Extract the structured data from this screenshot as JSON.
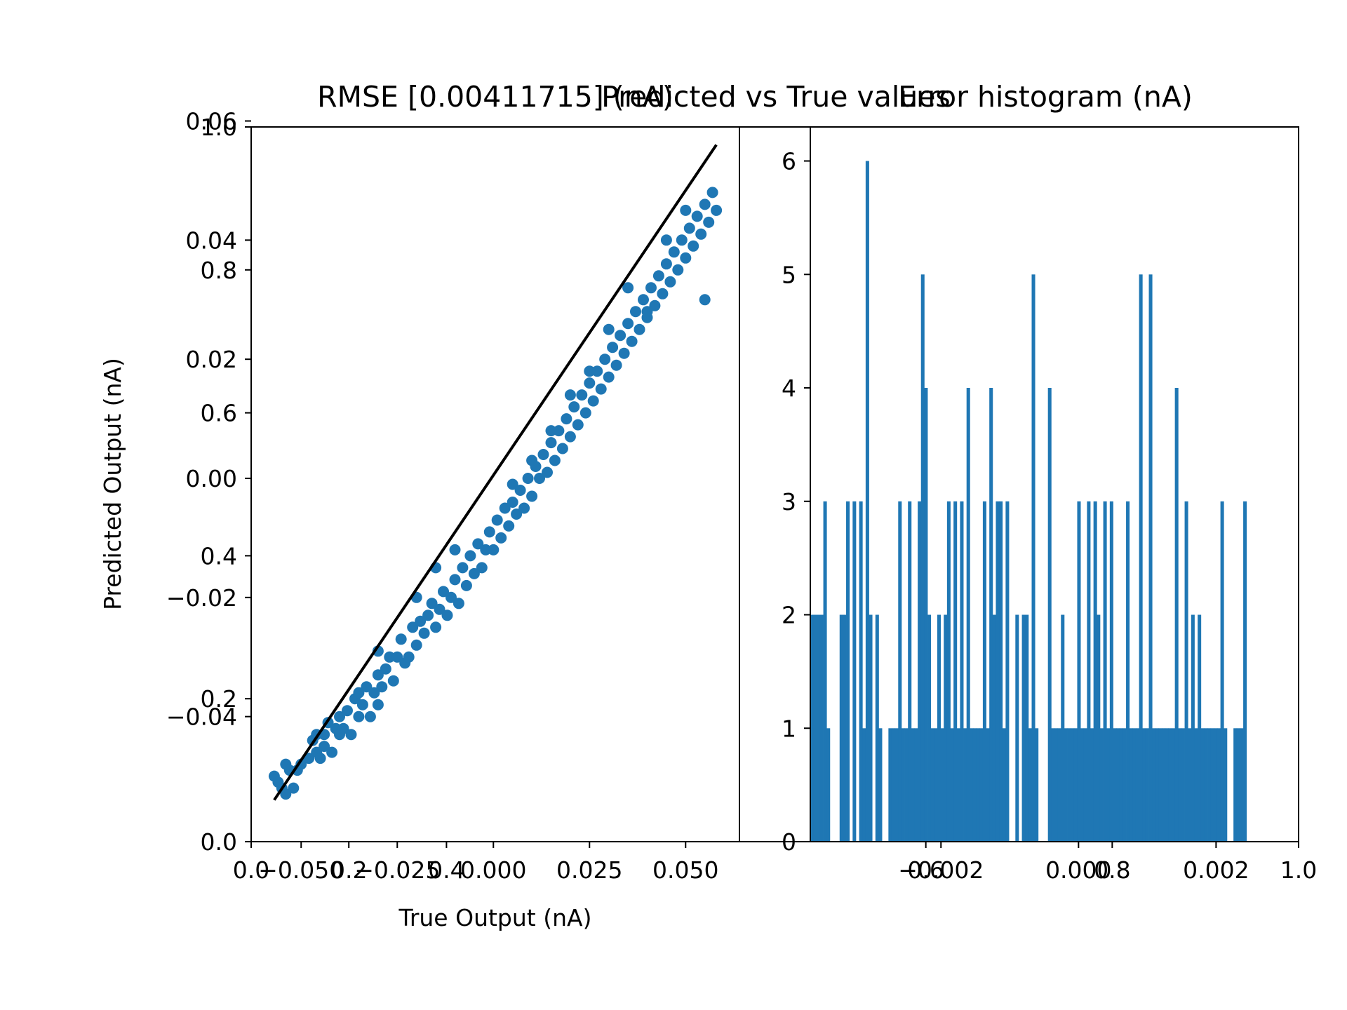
{
  "chart_data": [
    {
      "panel": "left",
      "type": "scatter",
      "titles": [
        "RMSE [0.00411715] (nA)",
        "Predicted vs True values"
      ],
      "xlabel": "True Output (nA)",
      "ylabel": "Predicted Output (nA)",
      "outer_axis": {
        "xlim": [
          0.0,
          1.0
        ],
        "ylim": [
          0.0,
          1.0
        ],
        "xticks": [
          "0.0",
          "0.2",
          "0.4"
        ],
        "yticks": [
          "0.0",
          "0.2",
          "0.4",
          "0.6",
          "0.8",
          "1.0"
        ]
      },
      "inner_axis": {
        "xlim": [
          -0.063,
          0.064
        ],
        "ylim": [
          -0.061,
          0.059
        ],
        "xticks": [
          "−0.050",
          "−0.025",
          "0.000",
          "0.025",
          "0.050"
        ],
        "yticks": [
          "−0.04",
          "−0.02",
          "0.00",
          "0.02",
          "0.04",
          "0.06"
        ]
      },
      "fit_line": {
        "x": [
          -0.057,
          0.058
        ],
        "y": [
          -0.054,
          0.056
        ],
        "color": "#000000"
      },
      "series": [
        {
          "color": "#1f77b4",
          "points": [
            [
              -0.057,
              -0.05
            ],
            [
              -0.056,
              -0.051
            ],
            [
              -0.055,
              -0.052
            ],
            [
              -0.054,
              -0.053
            ],
            [
              -0.054,
              -0.048
            ],
            [
              -0.053,
              -0.049
            ],
            [
              -0.052,
              -0.052
            ],
            [
              -0.051,
              -0.049
            ],
            [
              -0.05,
              -0.048
            ],
            [
              -0.048,
              -0.047
            ],
            [
              -0.047,
              -0.044
            ],
            [
              -0.046,
              -0.046
            ],
            [
              -0.045,
              -0.047
            ],
            [
              -0.044,
              -0.043
            ],
            [
              -0.044,
              -0.045
            ],
            [
              -0.043,
              -0.041
            ],
            [
              -0.042,
              -0.046
            ],
            [
              -0.041,
              -0.042
            ],
            [
              -0.04,
              -0.043
            ],
            [
              -0.039,
              -0.042
            ],
            [
              -0.038,
              -0.039
            ],
            [
              -0.037,
              -0.043
            ],
            [
              -0.036,
              -0.037
            ],
            [
              -0.035,
              -0.04
            ],
            [
              -0.035,
              -0.036
            ],
            [
              -0.034,
              -0.038
            ],
            [
              -0.033,
              -0.035
            ],
            [
              -0.032,
              -0.04
            ],
            [
              -0.031,
              -0.036
            ],
            [
              -0.03,
              -0.038
            ],
            [
              -0.03,
              -0.033
            ],
            [
              -0.029,
              -0.035
            ],
            [
              -0.028,
              -0.032
            ],
            [
              -0.027,
              -0.03
            ],
            [
              -0.026,
              -0.034
            ],
            [
              -0.025,
              -0.03
            ],
            [
              -0.024,
              -0.027
            ],
            [
              -0.023,
              -0.031
            ],
            [
              -0.022,
              -0.03
            ],
            [
              -0.021,
              -0.025
            ],
            [
              -0.02,
              -0.028
            ],
            [
              -0.019,
              -0.024
            ],
            [
              -0.018,
              -0.026
            ],
            [
              -0.017,
              -0.023
            ],
            [
              -0.016,
              -0.021
            ],
            [
              -0.015,
              -0.025
            ],
            [
              -0.014,
              -0.022
            ],
            [
              -0.013,
              -0.019
            ],
            [
              -0.012,
              -0.023
            ],
            [
              -0.011,
              -0.02
            ],
            [
              -0.01,
              -0.017
            ],
            [
              -0.009,
              -0.021
            ],
            [
              -0.008,
              -0.015
            ],
            [
              -0.007,
              -0.018
            ],
            [
              -0.006,
              -0.013
            ],
            [
              -0.005,
              -0.016
            ],
            [
              -0.004,
              -0.011
            ],
            [
              -0.003,
              -0.015
            ],
            [
              -0.002,
              -0.012
            ],
            [
              -0.001,
              -0.009
            ],
            [
              0.0,
              -0.012
            ],
            [
              0.001,
              -0.007
            ],
            [
              0.002,
              -0.01
            ],
            [
              0.003,
              -0.005
            ],
            [
              0.004,
              -0.008
            ],
            [
              0.005,
              -0.004
            ],
            [
              0.006,
              -0.006
            ],
            [
              0.007,
              -0.002
            ],
            [
              0.008,
              -0.005
            ],
            [
              0.009,
              0.0
            ],
            [
              0.01,
              -0.003
            ],
            [
              0.011,
              0.002
            ],
            [
              0.012,
              0.0
            ],
            [
              0.013,
              0.004
            ],
            [
              0.014,
              0.001
            ],
            [
              0.015,
              0.006
            ],
            [
              0.016,
              0.003
            ],
            [
              0.017,
              0.008
            ],
            [
              0.018,
              0.005
            ],
            [
              0.019,
              0.01
            ],
            [
              0.02,
              0.007
            ],
            [
              0.021,
              0.012
            ],
            [
              0.022,
              0.009
            ],
            [
              0.023,
              0.014
            ],
            [
              0.024,
              0.011
            ],
            [
              0.025,
              0.016
            ],
            [
              0.026,
              0.013
            ],
            [
              0.027,
              0.018
            ],
            [
              0.028,
              0.015
            ],
            [
              0.029,
              0.02
            ],
            [
              0.03,
              0.017
            ],
            [
              0.031,
              0.022
            ],
            [
              0.032,
              0.019
            ],
            [
              0.033,
              0.024
            ],
            [
              0.034,
              0.021
            ],
            [
              0.035,
              0.026
            ],
            [
              0.036,
              0.023
            ],
            [
              0.037,
              0.028
            ],
            [
              0.038,
              0.025
            ],
            [
              0.039,
              0.03
            ],
            [
              0.04,
              0.027
            ],
            [
              0.041,
              0.032
            ],
            [
              0.042,
              0.029
            ],
            [
              0.043,
              0.034
            ],
            [
              0.044,
              0.031
            ],
            [
              0.045,
              0.036
            ],
            [
              0.046,
              0.033
            ],
            [
              0.047,
              0.038
            ],
            [
              0.048,
              0.035
            ],
            [
              0.049,
              0.04
            ],
            [
              0.05,
              0.037
            ],
            [
              0.051,
              0.042
            ],
            [
              0.052,
              0.039
            ],
            [
              0.053,
              0.044
            ],
            [
              0.054,
              0.041
            ],
            [
              0.055,
              0.046
            ],
            [
              0.056,
              0.043
            ],
            [
              0.057,
              0.048
            ],
            [
              0.058,
              0.045
            ],
            [
              0.055,
              0.03
            ],
            [
              0.01,
              0.003
            ],
            [
              0.025,
              0.018
            ],
            [
              -0.03,
              -0.029
            ],
            [
              -0.01,
              -0.012
            ],
            [
              0.04,
              0.028
            ],
            [
              0.035,
              0.032
            ],
            [
              -0.046,
              -0.043
            ],
            [
              -0.02,
              -0.02
            ],
            [
              0.005,
              -0.001
            ],
            [
              0.02,
              0.014
            ],
            [
              0.045,
              0.04
            ],
            [
              0.05,
              0.045
            ],
            [
              -0.04,
              -0.04
            ],
            [
              -0.015,
              -0.015
            ],
            [
              0.015,
              0.008
            ],
            [
              0.03,
              0.025
            ]
          ]
        }
      ]
    },
    {
      "panel": "right",
      "type": "bar",
      "title": "Error histogram (nA)",
      "outer_axis": {
        "xlim": [
          0.0,
          1.0
        ],
        "xticks": [
          "0.6",
          "0.8",
          "1.0"
        ]
      },
      "inner_axis": {
        "xlim": [
          -0.0039,
          0.0032
        ],
        "ylim": [
          0,
          6.3
        ],
        "xticks": [
          "−0.002",
          "0.000",
          "0.002"
        ],
        "yticks": [
          "0",
          "1",
          "2",
          "3",
          "4",
          "5",
          "6"
        ]
      },
      "bins": {
        "start": -0.0039,
        "width": 4.733e-05
      },
      "series": [
        {
          "color": "#1f77b4",
          "counts": [
            2,
            2,
            2,
            2,
            3,
            1,
            0,
            0,
            0,
            2,
            2,
            3,
            0,
            3,
            0,
            3,
            1,
            6,
            2,
            0,
            2,
            1,
            0,
            0,
            1,
            1,
            1,
            3,
            1,
            1,
            3,
            1,
            1,
            3,
            5,
            4,
            2,
            1,
            1,
            2,
            1,
            2,
            3,
            1,
            3,
            1,
            3,
            1,
            4,
            1,
            1,
            1,
            1,
            3,
            1,
            4,
            2,
            3,
            3,
            1,
            3,
            0,
            0,
            2,
            0,
            2,
            2,
            1,
            5,
            1,
            0,
            0,
            0,
            4,
            1,
            1,
            1,
            2,
            1,
            1,
            1,
            1,
            3,
            1,
            1,
            3,
            1,
            3,
            2,
            1,
            3,
            1,
            3,
            1,
            1,
            1,
            1,
            3,
            1,
            1,
            1,
            5,
            1,
            1,
            5,
            1,
            1,
            1,
            1,
            1,
            1,
            1,
            4,
            1,
            1,
            3,
            1,
            2,
            1,
            2,
            1,
            1,
            1,
            1,
            1,
            1,
            3,
            1,
            0,
            0,
            1,
            1,
            1,
            3
          ]
        }
      ]
    }
  ]
}
